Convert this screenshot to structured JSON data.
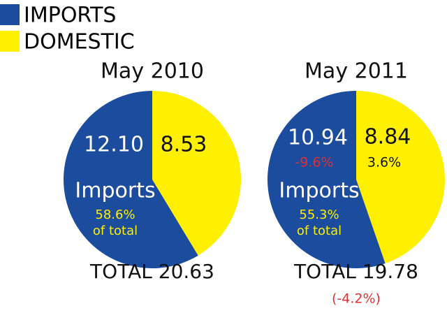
{
  "chart_data": [
    {
      "type": "pie",
      "title": "May 2010",
      "categories": [
        "IMPORTS",
        "DOMESTIC"
      ],
      "colors": [
        "#1b4c9e",
        "#fff000"
      ],
      "values": [
        12.1,
        8.53
      ],
      "value_labels": [
        "12.10",
        "8.53"
      ],
      "inner_label": "Imports",
      "share": "58.6%",
      "share_note": "of total",
      "total": "TOTAL 20.63"
    },
    {
      "type": "pie",
      "title": "May 2011",
      "categories": [
        "IMPORTS",
        "DOMESTIC"
      ],
      "colors": [
        "#1b4c9e",
        "#fff000"
      ],
      "values": [
        10.94,
        8.84
      ],
      "value_labels": [
        "10.94",
        "8.84"
      ],
      "changes": [
        "-9.6%",
        "3.6%"
      ],
      "inner_label": "Imports",
      "share": "55.3%",
      "share_note": "of total",
      "total": "TOTAL 19.78",
      "total_change": "(-4.2%)"
    }
  ]
}
